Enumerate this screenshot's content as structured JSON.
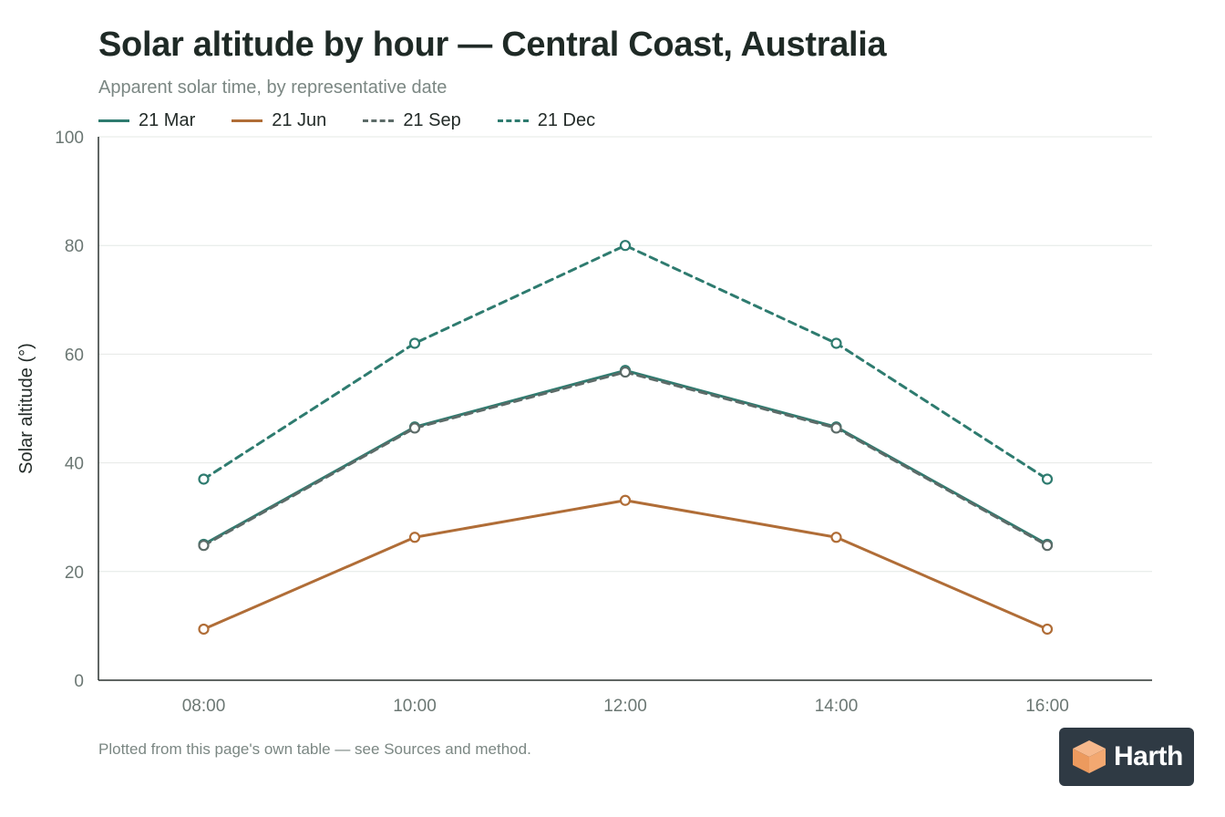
{
  "chart_data": {
    "type": "line",
    "title": "Solar altitude by hour — Central Coast, Australia",
    "subtitle": "Apparent solar time, by representative date",
    "xlabel": "",
    "ylabel": "Solar altitude (°)",
    "categories": [
      "08:00",
      "10:00",
      "12:00",
      "14:00",
      "16:00"
    ],
    "yticks": [
      "0",
      "20",
      "40",
      "60",
      "80",
      "100"
    ],
    "ylim": [
      0,
      100
    ],
    "grid": true,
    "legend_position": "top-left",
    "series": [
      {
        "name": "21 Mar",
        "color": "#2e7b6f",
        "dash": "solid",
        "values": [
          25,
          46.6,
          57,
          46.6,
          25
        ]
      },
      {
        "name": "21 Jun",
        "color": "#b06d37",
        "dash": "solid",
        "values": [
          9.4,
          26.3,
          33.1,
          26.3,
          9.4
        ]
      },
      {
        "name": "21 Sep",
        "color": "#5c6b68",
        "dash": "dashed",
        "values": [
          24.8,
          46.4,
          56.7,
          46.4,
          24.8
        ]
      },
      {
        "name": "21 Dec",
        "color": "#2e7b6f",
        "dash": "dashed",
        "values": [
          37,
          62,
          80,
          62,
          37
        ]
      }
    ]
  },
  "footnote": "Plotted from this page's own table — see Sources and method.",
  "badge": {
    "brand": "Harth",
    "icon": "harth-cube-logo-icon"
  }
}
